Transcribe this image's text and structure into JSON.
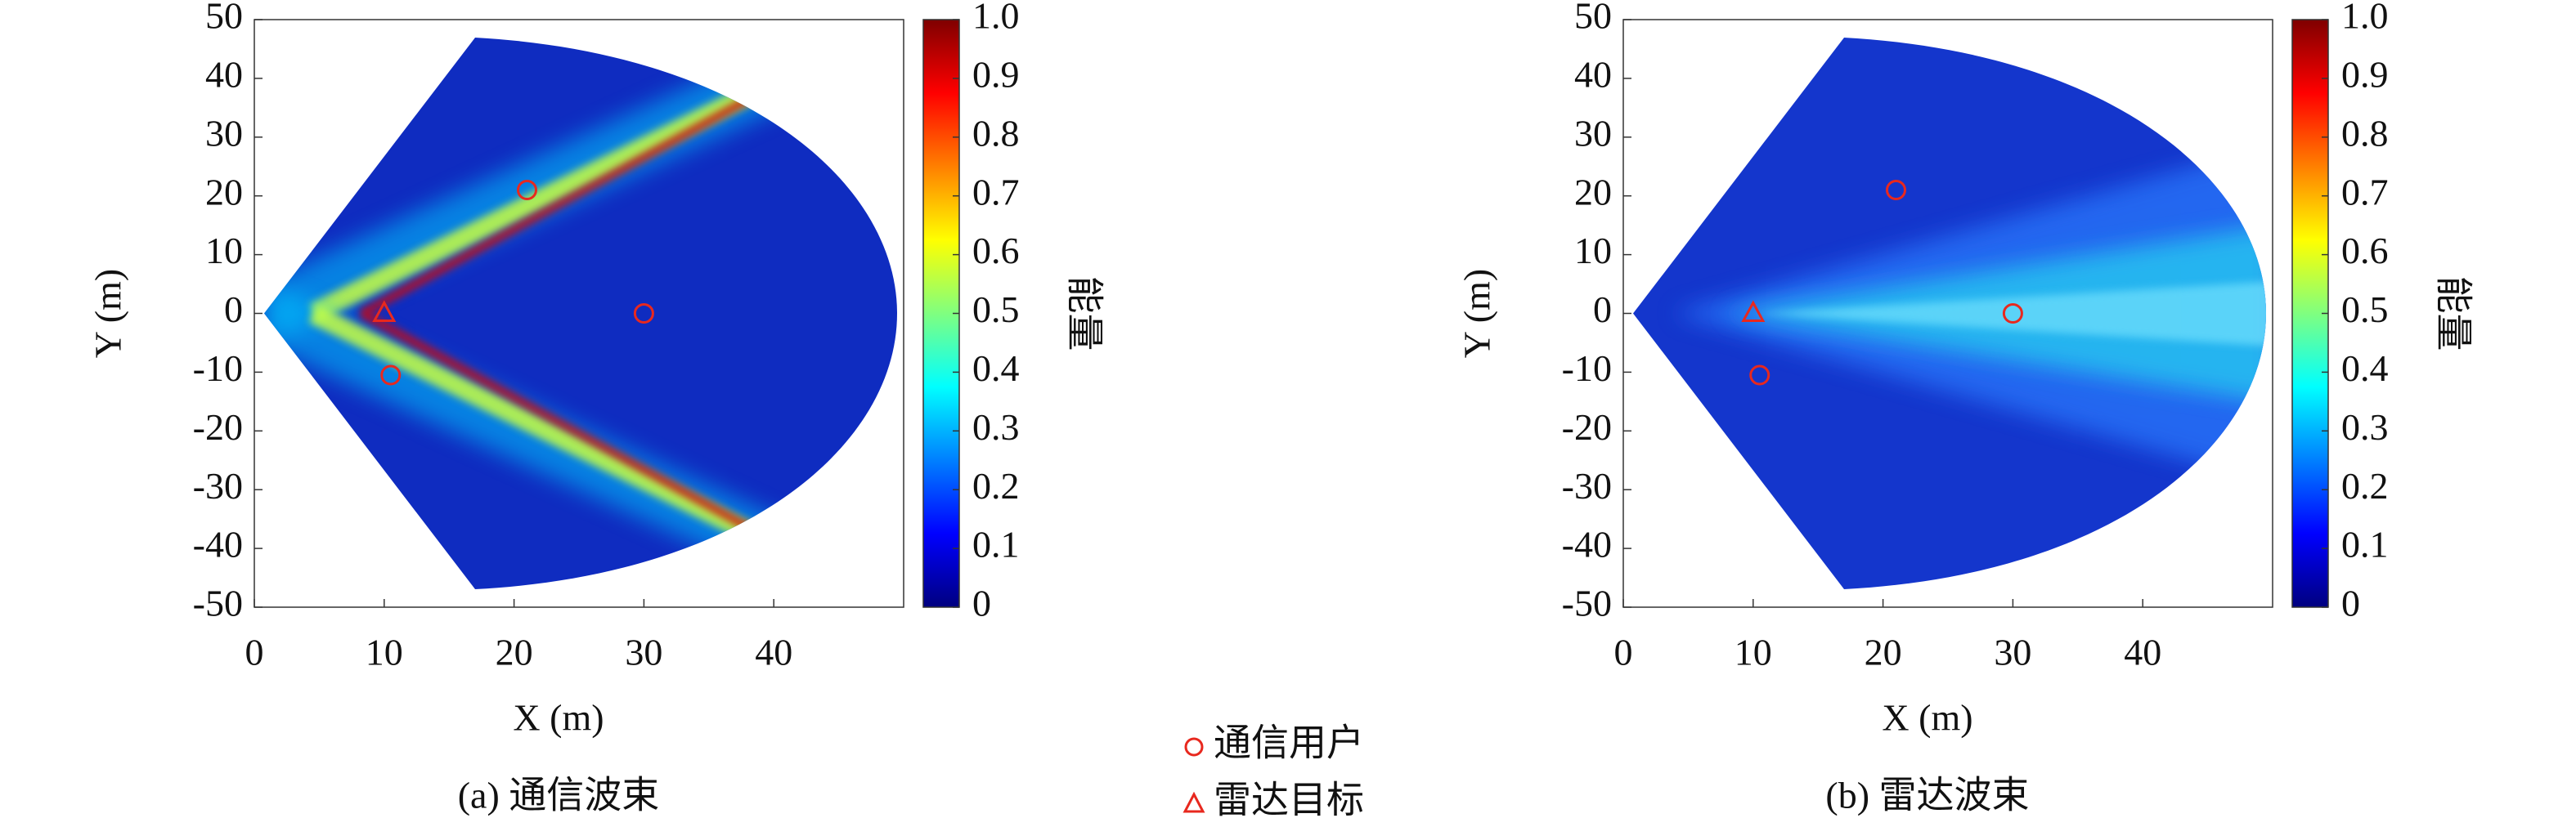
{
  "chart_data": [
    {
      "type": "heatmap",
      "caption": "(a) 通信波束",
      "xlabel": "X (m)",
      "ylabel": "Y (m)",
      "xlim": [
        0,
        50
      ],
      "ylim": [
        -50,
        50
      ],
      "xticks": [
        0,
        10,
        20,
        30,
        40
      ],
      "yticks": [
        -50,
        -40,
        -30,
        -20,
        -10,
        0,
        10,
        20,
        30,
        40,
        50
      ],
      "colorbar": {
        "label": "能量",
        "lim": [
          0,
          1
        ],
        "ticks": [
          0,
          0.1,
          0.2,
          0.3,
          0.4,
          0.5,
          0.6,
          0.7,
          0.8,
          0.9,
          {
            "value": 1,
            "label": "1.0"
          }
        ]
      },
      "series": [
        {
          "name": "通信用户",
          "marker": "circle",
          "color": "#e8281e",
          "x": [
            21,
            30,
            10.5
          ],
          "y": [
            21,
            0,
            -10.5
          ]
        },
        {
          "name": "雷达目标",
          "marker": "triangle",
          "color": "#e8281e",
          "x": [
            10
          ],
          "y": [
            0
          ]
        }
      ]
    },
    {
      "type": "heatmap",
      "caption": "(b) 雷达波束",
      "xlabel": "X (m)",
      "ylabel": "Y (m)",
      "xlim": [
        0,
        50
      ],
      "ylim": [
        -50,
        50
      ],
      "xticks": [
        0,
        10,
        20,
        30,
        40
      ],
      "yticks": [
        -50,
        -40,
        -30,
        -20,
        -10,
        0,
        10,
        20,
        30,
        40,
        50
      ],
      "colorbar": {
        "label": "能量",
        "lim": [
          0,
          1
        ],
        "ticks": [
          0,
          0.1,
          0.2,
          0.3,
          0.4,
          0.5,
          0.6,
          0.7,
          0.8,
          0.9,
          {
            "value": 1,
            "label": "1.0"
          }
        ]
      },
      "series": [
        {
          "name": "通信用户",
          "marker": "circle",
          "color": "#e8281e",
          "x": [
            21,
            30,
            10.5
          ],
          "y": [
            21,
            0,
            -10.5
          ]
        },
        {
          "name": "雷达目标",
          "marker": "triangle",
          "color": "#e8281e",
          "x": [
            10
          ],
          "y": [
            0
          ]
        }
      ]
    }
  ]
}
